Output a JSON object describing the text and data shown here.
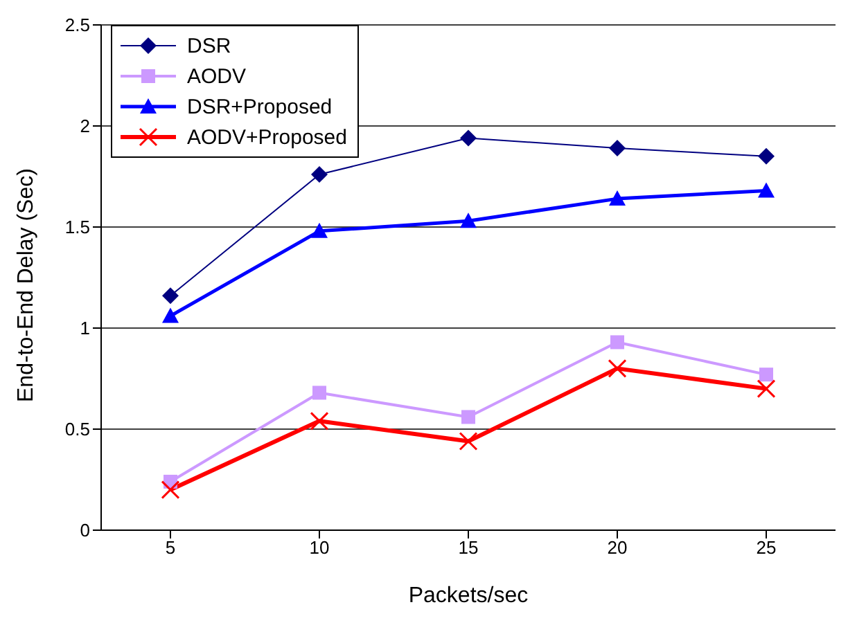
{
  "chart_data": {
    "type": "line",
    "xlabel": "Packets/sec",
    "ylabel": "End-to-End Delay (Sec)",
    "categories": [
      "5",
      "10",
      "15",
      "20",
      "25"
    ],
    "series": [
      {
        "name": "DSR",
        "color": "#000080",
        "marker": "diamond",
        "values": [
          1.16,
          1.76,
          1.94,
          1.89,
          1.85
        ]
      },
      {
        "name": "AODV",
        "color": "#cc99ff",
        "marker": "square",
        "values": [
          0.24,
          0.68,
          0.56,
          0.93,
          0.77
        ]
      },
      {
        "name": "DSR+Proposed",
        "color": "#0000ff",
        "marker": "triangle",
        "values": [
          1.06,
          1.48,
          1.53,
          1.64,
          1.68
        ]
      },
      {
        "name": "AODV+Proposed",
        "color": "#ff0000",
        "marker": "cross",
        "values": [
          0.2,
          0.54,
          0.44,
          0.8,
          0.7
        ]
      }
    ],
    "ylim": [
      0,
      2.5
    ],
    "yticks": [
      0,
      0.5,
      1,
      1.5,
      2,
      2.5
    ],
    "grid": "y",
    "legend": "top left"
  }
}
